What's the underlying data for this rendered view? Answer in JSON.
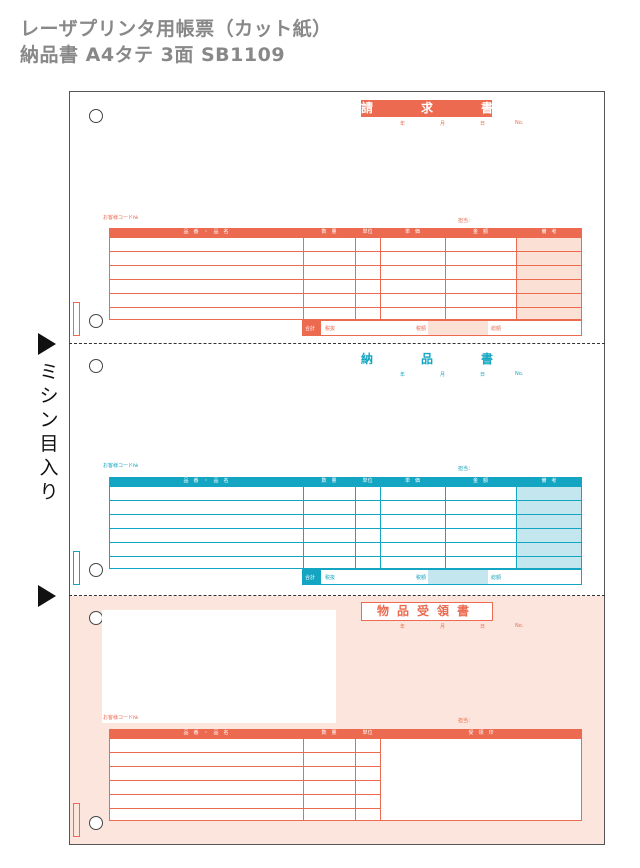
{
  "header": {
    "line1": "レーザプリンタ用帳票（カット紙）",
    "line2": "納品書 A4タテ 3面 SB1109"
  },
  "side_label": {
    "text": "ミシン目入り"
  },
  "colors": {
    "red": "#ec6a4f",
    "teal": "#13a5c1",
    "pink_bg": "#fbe5dc"
  },
  "sections": [
    {
      "title": "請　求　書",
      "date": {
        "year": "年",
        "month": "月",
        "day": "日",
        "no": "No."
      },
      "customer_code": "お客様コード№",
      "person": "担当：",
      "columns": [
        "品　番　・　品　名",
        "数　量",
        "単位",
        "単　価",
        "金　額",
        "備　考"
      ],
      "footer": {
        "total": "合計",
        "subtotal": "税抜",
        "tax": "税額",
        "grand": "総額"
      }
    },
    {
      "title": "納　品　書",
      "date": {
        "year": "年",
        "month": "月",
        "day": "日",
        "no": "No."
      },
      "customer_code": "お客様コード№",
      "person": "担当：",
      "columns": [
        "品　番　・　品　名",
        "数　量",
        "単位",
        "単　価",
        "金　額",
        "備　考"
      ],
      "footer": {
        "total": "合計",
        "subtotal": "税抜",
        "tax": "税額",
        "grand": "総額"
      }
    },
    {
      "title": "物品受領書",
      "date": {
        "year": "年",
        "month": "月",
        "day": "日",
        "no": "No."
      },
      "customer_code": "お客様コード№",
      "person": "担当：",
      "columns": [
        "品　番　・　品　名",
        "数　量",
        "単位",
        "受　領　印"
      ]
    }
  ]
}
